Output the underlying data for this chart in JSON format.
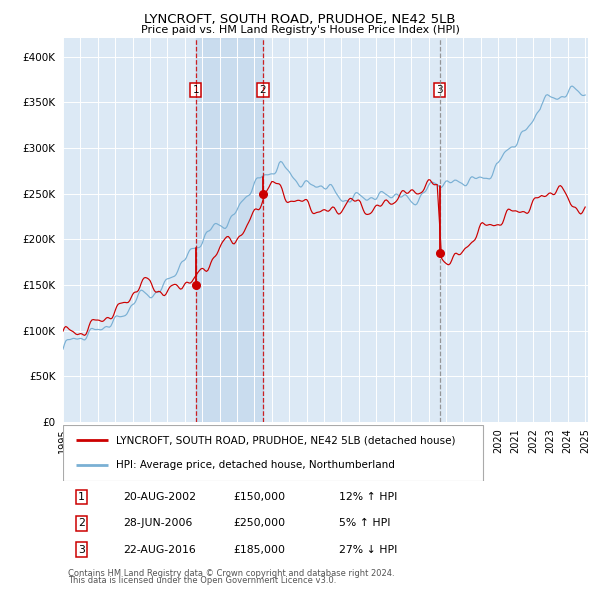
{
  "title": "LYNCROFT, SOUTH ROAD, PRUDHOE, NE42 5LB",
  "subtitle": "Price paid vs. HM Land Registry's House Price Index (HPI)",
  "legend_line1": "LYNCROFT, SOUTH ROAD, PRUDHOE, NE42 5LB (detached house)",
  "legend_line2": "HPI: Average price, detached house, Northumberland",
  "transactions": [
    {
      "label": "1",
      "date_str": "20-AUG-2002",
      "price": 150000,
      "hpi_rel": "12% ↑ HPI",
      "year": 2002,
      "month": 8
    },
    {
      "label": "2",
      "date_str": "28-JUN-2006",
      "price": 250000,
      "hpi_rel": "5% ↑ HPI",
      "year": 2006,
      "month": 6
    },
    {
      "label": "3",
      "date_str": "22-AUG-2016",
      "price": 185000,
      "hpi_rel": "27% ↓ HPI",
      "year": 2016,
      "month": 8
    }
  ],
  "footnote1": "Contains HM Land Registry data © Crown copyright and database right 2024.",
  "footnote2": "This data is licensed under the Open Government Licence v3.0.",
  "ylim": [
    0,
    420000
  ],
  "yticks": [
    0,
    50000,
    100000,
    150000,
    200000,
    250000,
    300000,
    350000,
    400000
  ],
  "background_color": "#ffffff",
  "plot_bg_color": "#dce9f5",
  "grid_color": "#ffffff",
  "red_line_color": "#cc0000",
  "blue_line_color": "#7ab0d4",
  "shade_color": "#b8d0e8"
}
